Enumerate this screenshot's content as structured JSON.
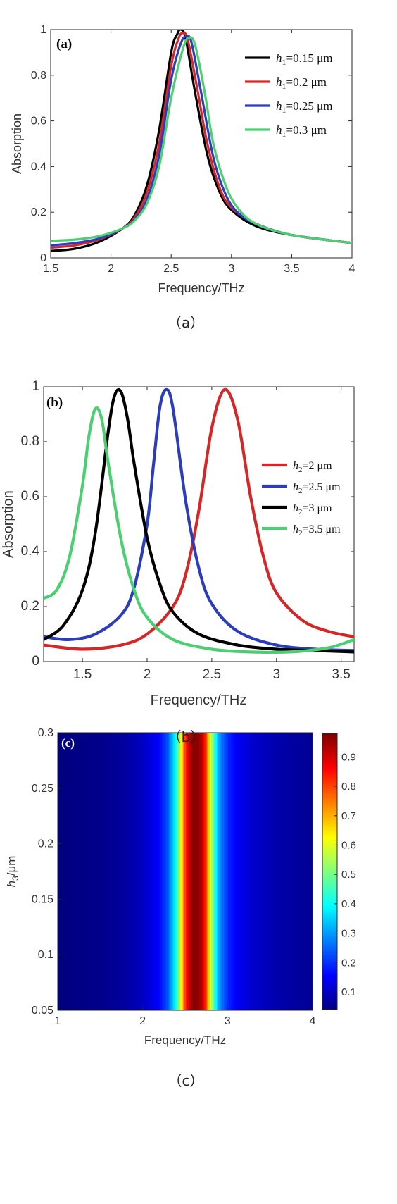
{
  "captions": [
    "（a）",
    "（b）",
    "（c）"
  ],
  "chart_data": [
    {
      "type": "line",
      "panel_label": "(a)",
      "xlabel": "Frequency/THz",
      "ylabel": "Absorption",
      "xlim": [
        1.5,
        4
      ],
      "ylim": [
        0,
        1
      ],
      "xticks": [
        "1.5",
        "2",
        "2.5",
        "3",
        "3.5",
        "4"
      ],
      "yticks": [
        "0",
        "0.2",
        "0.4",
        "0.6",
        "0.8",
        "1"
      ],
      "legend_position": "top-right",
      "series": [
        {
          "name": "h1=0.15 μm",
          "sym": "h",
          "sub": "1",
          "rest": "=0.15 μm",
          "color": "#000000",
          "x": [
            1.5,
            1.7,
            1.9,
            2.1,
            2.2,
            2.3,
            2.4,
            2.5,
            2.55,
            2.58,
            2.62,
            2.7,
            2.8,
            2.9,
            3.0,
            3.2,
            3.5,
            4.0
          ],
          "y": [
            0.03,
            0.04,
            0.07,
            0.13,
            0.19,
            0.32,
            0.56,
            0.9,
            0.98,
            1.0,
            0.96,
            0.72,
            0.45,
            0.29,
            0.21,
            0.14,
            0.1,
            0.065
          ]
        },
        {
          "name": "h1=0.2 μm",
          "sym": "h",
          "sub": "1",
          "rest": "=0.2 μm",
          "color": "#d62728",
          "x": [
            1.5,
            1.7,
            1.9,
            2.1,
            2.2,
            2.3,
            2.4,
            2.5,
            2.56,
            2.6,
            2.64,
            2.72,
            2.8,
            2.9,
            3.0,
            3.2,
            3.5,
            4.0
          ],
          "y": [
            0.045,
            0.055,
            0.08,
            0.13,
            0.18,
            0.29,
            0.5,
            0.84,
            0.96,
            0.985,
            0.95,
            0.73,
            0.5,
            0.31,
            0.22,
            0.15,
            0.1,
            0.065
          ]
        },
        {
          "name": "h1=0.25 μm",
          "sym": "h",
          "sub": "1",
          "rest": "=0.25 μm",
          "color": "#2b3dbb",
          "x": [
            1.5,
            1.7,
            1.9,
            2.1,
            2.2,
            2.3,
            2.4,
            2.5,
            2.58,
            2.63,
            2.67,
            2.75,
            2.85,
            2.95,
            3.05,
            3.2,
            3.5,
            4.0
          ],
          "y": [
            0.055,
            0.065,
            0.085,
            0.13,
            0.17,
            0.26,
            0.45,
            0.78,
            0.94,
            0.97,
            0.94,
            0.72,
            0.44,
            0.28,
            0.2,
            0.15,
            0.1,
            0.065
          ]
        },
        {
          "name": "h1=0.3 μm",
          "sym": "h",
          "sub": "1",
          "rest": "=0.3 μm",
          "color": "#4ccf72",
          "x": [
            1.5,
            1.7,
            1.9,
            2.1,
            2.2,
            2.3,
            2.4,
            2.5,
            2.6,
            2.65,
            2.7,
            2.78,
            2.85,
            2.95,
            3.05,
            3.2,
            3.5,
            4.0
          ],
          "y": [
            0.075,
            0.08,
            0.095,
            0.13,
            0.165,
            0.24,
            0.4,
            0.7,
            0.92,
            0.965,
            0.93,
            0.72,
            0.5,
            0.32,
            0.22,
            0.15,
            0.1,
            0.065
          ]
        }
      ]
    },
    {
      "type": "line",
      "panel_label": "(b)",
      "xlabel": "Frequency/THz",
      "ylabel": "Absorption",
      "xlim": [
        1.2,
        3.6
      ],
      "ylim": [
        0,
        1
      ],
      "xticks": [
        "1.5",
        "2",
        "2.5",
        "3",
        "3.5"
      ],
      "yticks": [
        "0",
        "0.2",
        "0.4",
        "0.6",
        "0.8",
        "1"
      ],
      "legend_position": "center-right",
      "series": [
        {
          "name": "h2=2 μm",
          "sym": "h",
          "sub": "2",
          "rest": "=2 μm",
          "color": "#d62728",
          "x": [
            1.2,
            1.5,
            1.8,
            2.0,
            2.2,
            2.3,
            2.4,
            2.5,
            2.6,
            2.7,
            2.8,
            2.9,
            3.0,
            3.2,
            3.4,
            3.6
          ],
          "y": [
            0.06,
            0.045,
            0.06,
            0.1,
            0.2,
            0.32,
            0.55,
            0.85,
            0.99,
            0.88,
            0.6,
            0.38,
            0.25,
            0.15,
            0.11,
            0.09
          ]
        },
        {
          "name": "h2=2.5 μm",
          "sym": "h",
          "sub": "2",
          "rest": "=2.5 μm",
          "color": "#2b3dbb",
          "x": [
            1.2,
            1.4,
            1.6,
            1.8,
            1.9,
            2.0,
            2.05,
            2.1,
            2.15,
            2.2,
            2.3,
            2.4,
            2.5,
            2.7,
            3.0,
            3.3,
            3.6
          ],
          "y": [
            0.09,
            0.08,
            0.1,
            0.17,
            0.27,
            0.5,
            0.72,
            0.93,
            0.99,
            0.92,
            0.58,
            0.34,
            0.21,
            0.11,
            0.06,
            0.045,
            0.04
          ]
        },
        {
          "name": "h2=3 μm",
          "sym": "h",
          "sub": "2",
          "rest": "=3 μm",
          "color": "#000000",
          "x": [
            1.2,
            1.35,
            1.5,
            1.6,
            1.7,
            1.75,
            1.8,
            1.85,
            1.9,
            2.0,
            2.1,
            2.2,
            2.4,
            2.7,
            3.0,
            3.3,
            3.6
          ],
          "y": [
            0.08,
            0.13,
            0.26,
            0.47,
            0.84,
            0.97,
            0.98,
            0.88,
            0.72,
            0.45,
            0.28,
            0.18,
            0.1,
            0.06,
            0.045,
            0.04,
            0.035
          ]
        },
        {
          "name": "h2=3.5 μm",
          "sym": "h",
          "sub": "2",
          "rest": "=3.5 μm",
          "color": "#4ccf72",
          "x": [
            1.2,
            1.3,
            1.4,
            1.5,
            1.55,
            1.6,
            1.65,
            1.7,
            1.8,
            1.9,
            2.0,
            2.2,
            2.5,
            2.8,
            3.1,
            3.4,
            3.6
          ],
          "y": [
            0.23,
            0.26,
            0.38,
            0.64,
            0.82,
            0.92,
            0.88,
            0.72,
            0.44,
            0.26,
            0.16,
            0.08,
            0.045,
            0.035,
            0.035,
            0.05,
            0.08
          ]
        }
      ]
    },
    {
      "type": "heatmap",
      "panel_label": "(c)",
      "xlabel": "Frequency/THz",
      "ylabel": "h3/μm",
      "ylabel_sym": "h",
      "ylabel_sub": "3",
      "ylabel_rest": "/μm",
      "xlim": [
        1,
        4
      ],
      "ylim": [
        0.05,
        0.3
      ],
      "xticks": [
        "1",
        "2",
        "3",
        "4"
      ],
      "yticks": [
        "0.05",
        "0.1",
        "0.15",
        "0.2",
        "0.25",
        "0.3"
      ],
      "colorbar": {
        "range": [
          0.04,
          0.98
        ],
        "ticks": [
          "0.1",
          "0.2",
          "0.3",
          "0.4",
          "0.5",
          "0.6",
          "0.7",
          "0.8",
          "0.9"
        ],
        "colormap": "jet"
      },
      "note": "absorption independent of h3; profile versus frequency below",
      "profile_x": [
        1.0,
        1.5,
        1.8,
        2.0,
        2.2,
        2.3,
        2.4,
        2.45,
        2.5,
        2.55,
        2.6,
        2.65,
        2.7,
        2.75,
        2.8,
        2.85,
        2.9,
        3.0,
        3.1,
        3.3,
        3.6,
        4.0
      ],
      "profile_z": [
        0.04,
        0.05,
        0.07,
        0.1,
        0.16,
        0.24,
        0.42,
        0.6,
        0.8,
        0.92,
        0.97,
        0.97,
        0.92,
        0.8,
        0.6,
        0.43,
        0.3,
        0.2,
        0.15,
        0.11,
        0.08,
        0.06
      ]
    }
  ]
}
